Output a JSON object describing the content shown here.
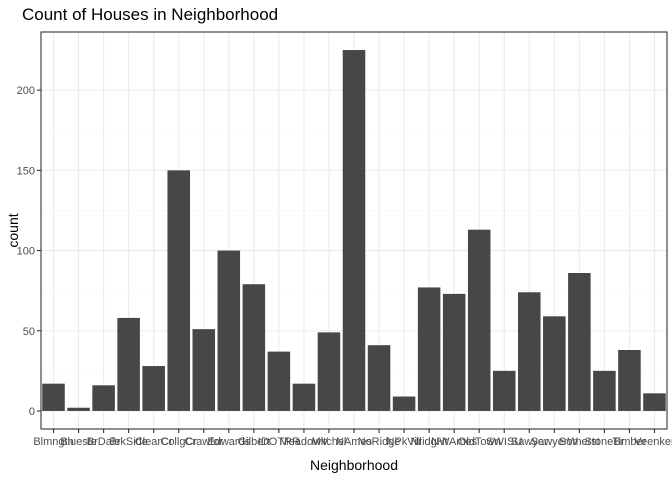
{
  "chart_data": {
    "type": "bar",
    "title": "Count of Houses in Neighborhood",
    "xlabel": "Neighborhood",
    "ylabel": "count",
    "categories": [
      "Blmngtn",
      "Blueste",
      "BrDale",
      "BrkSide",
      "ClearCr",
      "CollgCr",
      "Crawfor",
      "Edwards",
      "Gilbert",
      "IDOTRR",
      "MeadowV",
      "Mitchel",
      "NAmes",
      "NoRidge",
      "NPkVill",
      "NridgHt",
      "NWAmes",
      "OldTown",
      "SWISU",
      "Sawyer",
      "SawyerW",
      "Somerst",
      "StoneBr",
      "Timber",
      "Veenker"
    ],
    "values": [
      17,
      2,
      16,
      58,
      28,
      150,
      51,
      100,
      79,
      37,
      17,
      49,
      225,
      41,
      9,
      77,
      73,
      113,
      25,
      74,
      59,
      86,
      25,
      38,
      11
    ],
    "ylim": [
      -11.25,
      236.25
    ],
    "yticks": [
      0,
      50,
      100,
      150,
      200
    ],
    "bar_color": "#474747",
    "grid": true,
    "legend": "none"
  }
}
